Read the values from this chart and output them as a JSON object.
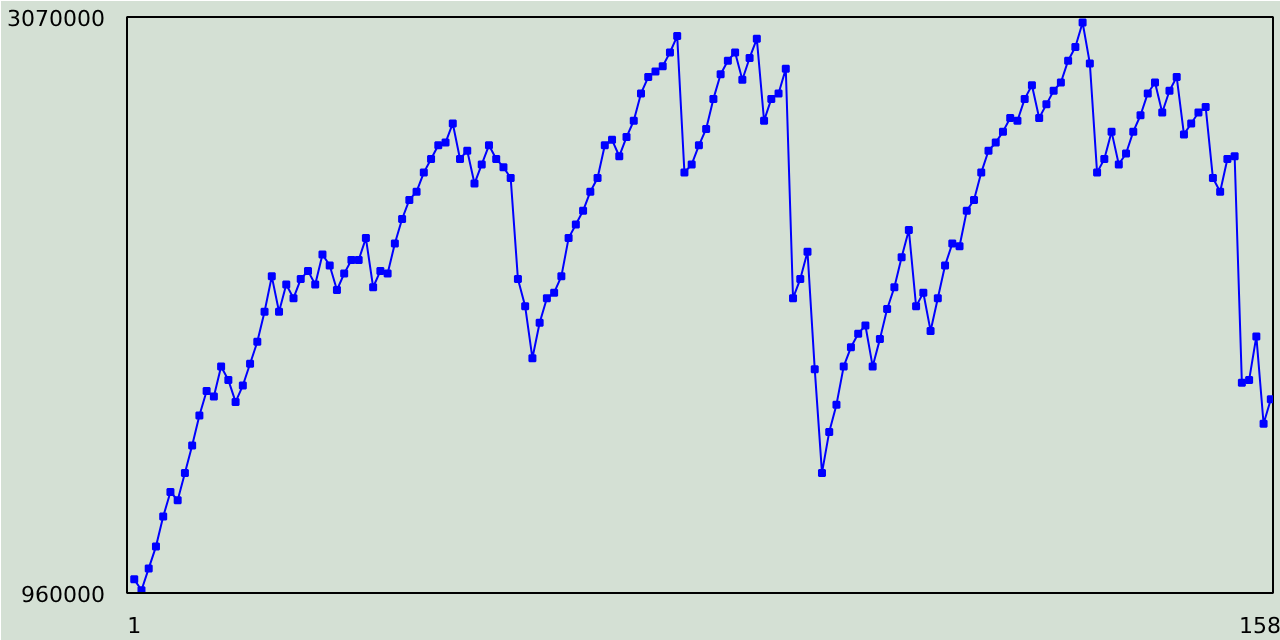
{
  "chart_data": {
    "type": "line",
    "marker": "square",
    "grid": false,
    "x": [
      1,
      2,
      3,
      4,
      5,
      6,
      7,
      8,
      9,
      10,
      11,
      12,
      13,
      14,
      15,
      16,
      17,
      18,
      19,
      20,
      21,
      22,
      23,
      24,
      25,
      26,
      27,
      28,
      29,
      30,
      31,
      32,
      33,
      34,
      35,
      36,
      37,
      38,
      39,
      40,
      41,
      42,
      43,
      44,
      45,
      46,
      47,
      48,
      49,
      50,
      51,
      52,
      53,
      54,
      55,
      56,
      57,
      58,
      59,
      60,
      61,
      62,
      63,
      64,
      65,
      66,
      67,
      68,
      69,
      70,
      71,
      72,
      73,
      74,
      75,
      76,
      77,
      78,
      79,
      80,
      81,
      82,
      83,
      84,
      85,
      86,
      87,
      88,
      89,
      90,
      91,
      92,
      93,
      94,
      95,
      96,
      97,
      98,
      99,
      100,
      101,
      102,
      103,
      104,
      105,
      106,
      107,
      108,
      109,
      110,
      111,
      112,
      113,
      114,
      115,
      116,
      117,
      118,
      119,
      120,
      121,
      122,
      123,
      124,
      125,
      126,
      127,
      128,
      129,
      130,
      131,
      132,
      133,
      134,
      135,
      136,
      137,
      138,
      139,
      140,
      141,
      142,
      143,
      144,
      145,
      146,
      147,
      148,
      149,
      150,
      151,
      152,
      153,
      154,
      155,
      156,
      157,
      158
    ],
    "series": [
      {
        "color": "#0000ff",
        "values": [
          1010000,
          970000,
          1050000,
          1130000,
          1240000,
          1330000,
          1300000,
          1400000,
          1500000,
          1610000,
          1700000,
          1680000,
          1790000,
          1740000,
          1660000,
          1720000,
          1800000,
          1880000,
          1990000,
          2120000,
          1990000,
          2090000,
          2040000,
          2110000,
          2140000,
          2090000,
          2200000,
          2160000,
          2070000,
          2130000,
          2180000,
          2180000,
          2260000,
          2080000,
          2140000,
          2130000,
          2240000,
          2330000,
          2400000,
          2430000,
          2500000,
          2550000,
          2600000,
          2610000,
          2680000,
          2550000,
          2580000,
          2460000,
          2530000,
          2600000,
          2550000,
          2520000,
          2480000,
          2110000,
          2010000,
          1820000,
          1950000,
          2040000,
          2060000,
          2120000,
          2260000,
          2310000,
          2360000,
          2430000,
          2480000,
          2600000,
          2620000,
          2560000,
          2630000,
          2690000,
          2790000,
          2850000,
          2870000,
          2890000,
          2940000,
          3000000,
          2500000,
          2530000,
          2600000,
          2660000,
          2770000,
          2860000,
          2910000,
          2940000,
          2840000,
          2920000,
          2990000,
          2690000,
          2770000,
          2790000,
          2880000,
          2040000,
          2110000,
          2210000,
          1780000,
          1400000,
          1550000,
          1650000,
          1790000,
          1860000,
          1910000,
          1940000,
          1790000,
          1890000,
          2000000,
          2080000,
          2190000,
          2290000,
          2010000,
          2060000,
          1920000,
          2040000,
          2160000,
          2240000,
          2230000,
          2360000,
          2400000,
          2500000,
          2580000,
          2610000,
          2650000,
          2700000,
          2690000,
          2770000,
          2820000,
          2700000,
          2750000,
          2800000,
          2830000,
          2910000,
          2960000,
          3050000,
          2900000,
          2500000,
          2550000,
          2650000,
          2530000,
          2570000,
          2650000,
          2710000,
          2790000,
          2830000,
          2720000,
          2800000,
          2850000,
          2640000,
          2680000,
          2720000,
          2740000,
          2480000,
          2430000,
          2550000,
          2560000,
          1730000,
          1740000,
          1900000,
          1580000,
          1670000
        ]
      }
    ],
    "xlim": [
      0,
      158.3
    ],
    "ylim": [
      960000,
      3070000
    ],
    "xticks": [
      1,
      158
    ],
    "yticks": [
      960000,
      3070000
    ]
  }
}
